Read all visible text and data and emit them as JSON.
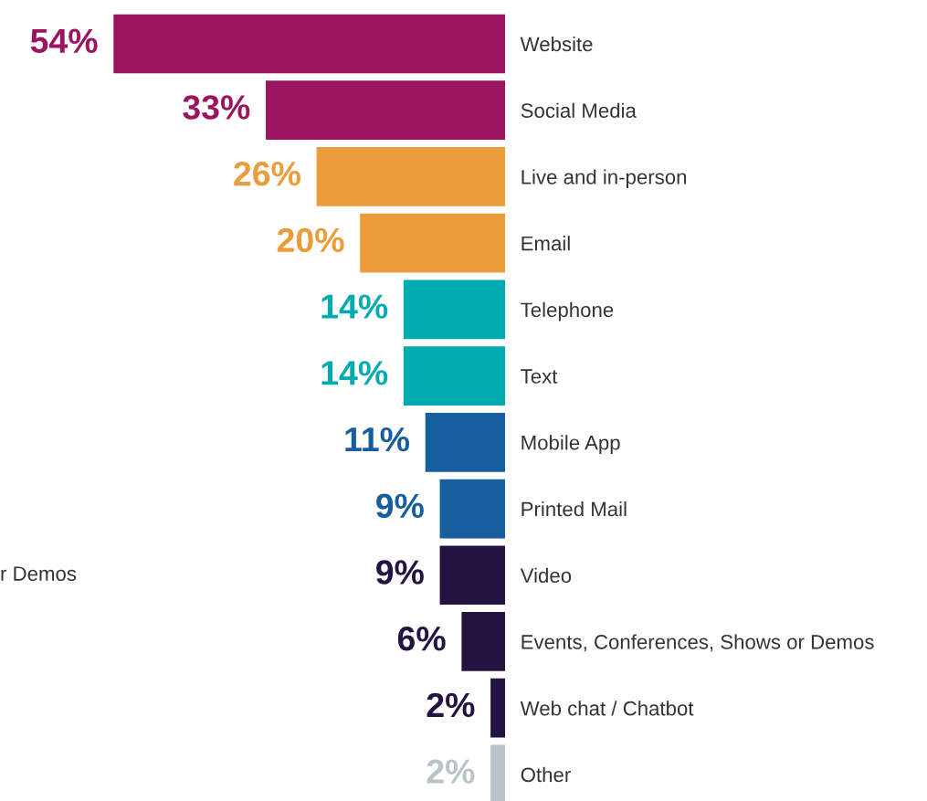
{
  "chart_data": {
    "type": "bar",
    "orientation": "horizontal",
    "categories": [
      "Website",
      "Social Media",
      "Live and in-person",
      "Email",
      "Telephone",
      "Text",
      "Mobile App",
      "Printed Mail",
      "Video",
      "Events, Conferences, Shows or Demos",
      "Web chat / Chatbot",
      "Other"
    ],
    "values": [
      54,
      33,
      26,
      20,
      14,
      14,
      11,
      9,
      9,
      6,
      2,
      2
    ],
    "colors": [
      "#9b1460",
      "#9b1460",
      "#eb9d3c",
      "#eb9d3c",
      "#00abb0",
      "#00abb0",
      "#175e9f",
      "#175e9f",
      "#241340",
      "#241340",
      "#241340",
      "#b9c4c8"
    ],
    "value_labels": [
      "54%",
      "33%",
      "26%",
      "20%",
      "14%",
      "14%",
      "11%",
      "9%",
      "9%",
      "6%",
      "2%",
      "2%"
    ],
    "tick_labels": "y",
    "grid": false,
    "legend": false,
    "annotations": [
      "r Demos"
    ]
  }
}
